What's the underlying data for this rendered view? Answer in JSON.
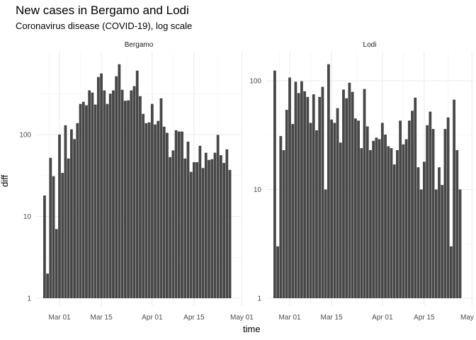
{
  "chart_data": [
    {
      "type": "bar",
      "title": "New cases in Bergamo and Lodi",
      "subtitle": "Coronavirus disease (COVID-19), log scale",
      "panel": "Bergamo",
      "xlabel": "time",
      "ylabel": "diff",
      "y_scale": "log10",
      "x_start": "2020-02-25",
      "x_step_days": 1,
      "x_ticks": [
        "Mar 01",
        "Mar 15",
        "Apr 01",
        "Apr 15",
        "May 01"
      ],
      "y_ticks": [
        "1",
        "10",
        "100"
      ],
      "values": [
        18,
        2,
        52,
        31,
        7,
        100,
        34,
        130,
        51,
        116,
        88,
        138,
        237,
        252,
        228,
        347,
        326,
        233,
        506,
        559,
        347,
        237,
        316,
        347,
        516,
        724,
        353,
        259,
        262,
        347,
        391,
        605,
        295,
        179,
        138,
        141,
        237,
        133,
        147,
        278,
        125,
        105,
        53,
        64,
        113,
        109,
        109,
        51,
        82,
        35,
        46,
        46,
        73,
        39,
        60,
        49,
        50,
        60,
        99,
        56,
        45,
        66,
        37
      ],
      "color": "#474747"
    },
    {
      "type": "bar",
      "panel": "Lodi",
      "y_scale": "log10",
      "x_start": "2020-02-25",
      "x_step_days": 1,
      "x_ticks": [
        "Mar 01",
        "Mar 15",
        "Apr 01",
        "Apr 15",
        "May 01"
      ],
      "y_ticks": [
        "1",
        "10",
        "100"
      ],
      "values": [
        124,
        3,
        31,
        23,
        54,
        107,
        40,
        98,
        77,
        99,
        80,
        71,
        41,
        75,
        35,
        71,
        88,
        10,
        142,
        44,
        41,
        56,
        27,
        83,
        69,
        96,
        79,
        45,
        43,
        24,
        84,
        38,
        23,
        28,
        30,
        29,
        41,
        32,
        25,
        24,
        17,
        23,
        43,
        26,
        29,
        43,
        53,
        70,
        16,
        10,
        18,
        39,
        52,
        36,
        10,
        16,
        11,
        36,
        46,
        3,
        67,
        23,
        10
      ],
      "color": "#474747"
    }
  ]
}
